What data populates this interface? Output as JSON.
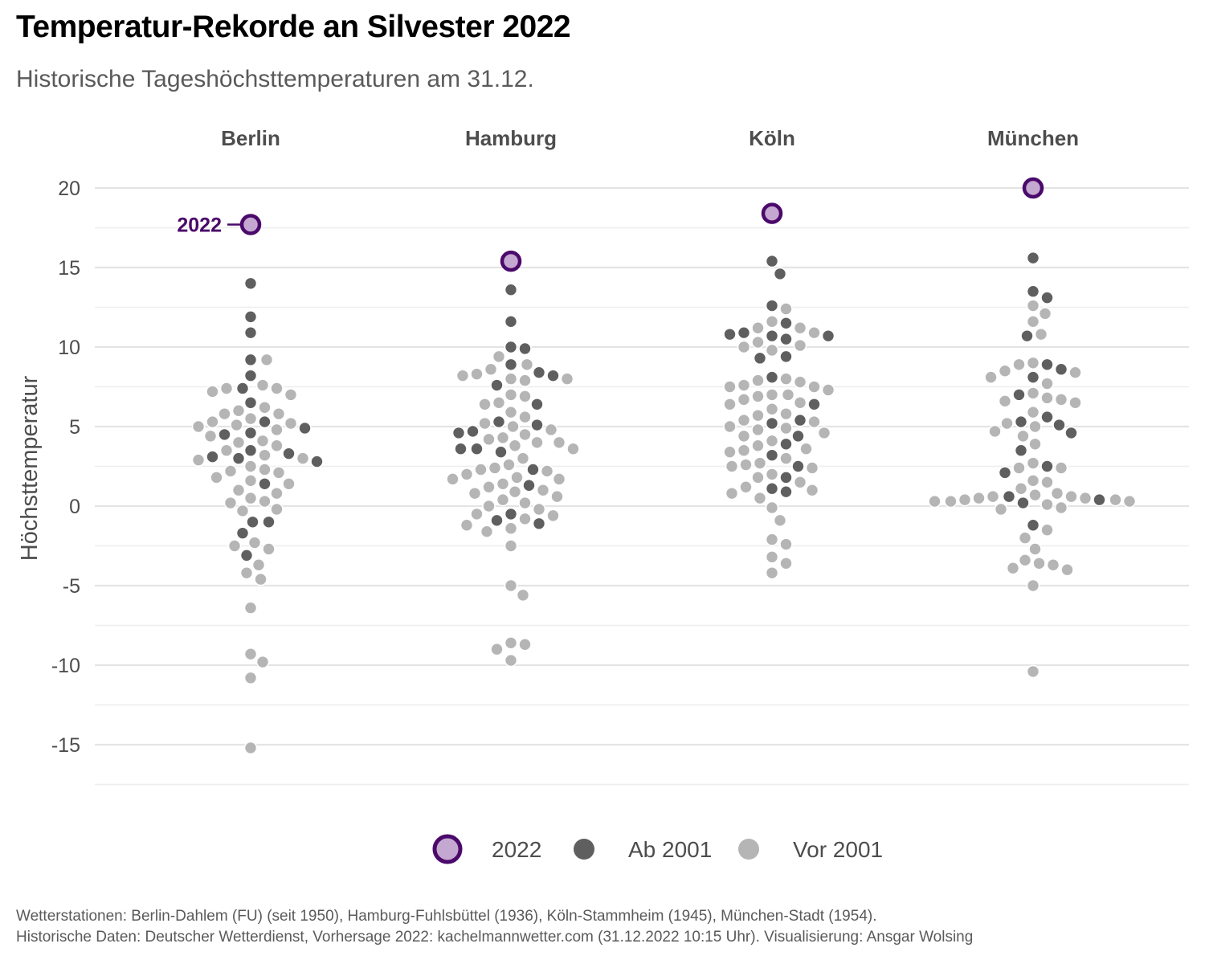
{
  "title": "Temperatur-Rekorde an Silvester 2022",
  "subtitle": "Historische Tageshöchsttemperaturen am 31.12.",
  "caption": {
    "line1": "Wetterstationen: Berlin-Dahlem (FU) (seit 1950), Hamburg-Fuhlsbüttel (1936), Köln-Stammheim (1945), München-Stadt (1954).",
    "line2": "Historische Daten: Deutscher Wetterdienst, Vorhersage 2022: kachelmannwetter.com (31.12.2022 10:15 Uhr). Visualisierung: Ansgar Wolsing"
  },
  "chart_data": {
    "type": "scatter",
    "title": "Temperatur-Rekorde an Silvester 2022",
    "subtitle": "Historische Tageshöchsttemperaturen am 31.12.",
    "ylabel": "Höchsttemperatur",
    "xlabel": "",
    "ylim": [
      -17.5,
      22
    ],
    "yticks": [
      -15,
      -10,
      -5,
      0,
      5,
      10,
      15,
      20
    ],
    "grid": true,
    "legend_position": "bottom",
    "annotation": {
      "text": "2022",
      "city": "Berlin"
    },
    "colors": {
      "2022_fill": "#c5a8d1",
      "2022_stroke": "#4b0a6b",
      "ab2001": "#5f5f5f",
      "vor2001": "#b5b5b5",
      "annotation": "#4b0a6b"
    },
    "legend": [
      {
        "key": "2022",
        "label": "2022"
      },
      {
        "key": "ab2001",
        "label": "Ab 2001"
      },
      {
        "key": "vor2001",
        "label": "Vor 2001"
      }
    ],
    "panels": [
      {
        "city": "Berlin",
        "y2022": 17.7,
        "ab2001": [
          14.0,
          11.9,
          10.9,
          9.2,
          8.2,
          7.4,
          6.5,
          5.3,
          4.9,
          4.6,
          4.5,
          3.5,
          3.3,
          3.1,
          3.0,
          2.8,
          1.4,
          -1.0,
          -1.0,
          -1.7,
          -3.1
        ],
        "vor2001": [
          9.2,
          7.6,
          7.4,
          7.4,
          7.2,
          7.0,
          6.2,
          6.0,
          5.8,
          5.8,
          5.5,
          5.3,
          5.2,
          5.1,
          5.0,
          4.8,
          4.4,
          4.1,
          4.0,
          3.8,
          3.5,
          3.2,
          3.0,
          2.9,
          2.5,
          2.3,
          2.2,
          2.1,
          1.8,
          1.6,
          1.4,
          1.0,
          0.8,
          0.5,
          0.3,
          0.2,
          -0.2,
          -0.3,
          -2.3,
          -2.5,
          -2.7,
          -3.7,
          -4.2,
          -4.6,
          -6.4,
          -9.3,
          -9.8,
          -10.8,
          -15.2
        ]
      },
      {
        "city": "Hamburg",
        "y2022": 15.4,
        "ab2001": [
          13.6,
          11.6,
          10.0,
          9.9,
          8.9,
          8.4,
          8.2,
          7.6,
          6.4,
          5.3,
          5.1,
          4.7,
          4.6,
          3.6,
          3.6,
          3.4,
          2.3,
          1.3,
          -0.5,
          -0.9,
          -1.1
        ],
        "vor2001": [
          9.4,
          8.9,
          8.6,
          8.3,
          8.2,
          8.0,
          8.0,
          7.9,
          7.0,
          6.9,
          6.5,
          6.4,
          5.9,
          5.6,
          5.2,
          5.0,
          4.8,
          4.5,
          4.3,
          4.2,
          4.0,
          4.0,
          3.8,
          3.6,
          3.0,
          2.6,
          2.4,
          2.3,
          2.2,
          2.0,
          1.8,
          1.7,
          1.7,
          1.4,
          1.2,
          1.0,
          0.9,
          0.8,
          0.6,
          0.4,
          0.2,
          0.0,
          -0.2,
          -0.5,
          -0.6,
          -0.8,
          -1.2,
          -1.4,
          -1.6,
          -2.5,
          -5.0,
          -5.6,
          -8.6,
          -8.7,
          -9.0,
          -9.7
        ]
      },
      {
        "city": "Köln",
        "y2022": 18.4,
        "ab2001": [
          15.4,
          14.6,
          12.6,
          11.5,
          10.9,
          10.8,
          10.7,
          10.7,
          10.5,
          9.4,
          9.3,
          8.1,
          6.4,
          5.4,
          5.2,
          4.4,
          3.9,
          3.2,
          2.5,
          1.8,
          1.1,
          0.9
        ],
        "vor2001": [
          12.4,
          11.6,
          11.2,
          11.2,
          10.9,
          10.3,
          10.1,
          10.0,
          9.8,
          8.0,
          7.9,
          7.8,
          7.6,
          7.5,
          7.5,
          7.3,
          7.0,
          7.0,
          6.9,
          6.7,
          6.5,
          6.4,
          6.1,
          5.8,
          5.7,
          5.4,
          5.3,
          5.0,
          4.9,
          4.8,
          4.6,
          4.4,
          4.1,
          3.8,
          3.6,
          3.5,
          3.4,
          3.0,
          2.7,
          2.6,
          2.5,
          2.4,
          2.0,
          1.8,
          1.5,
          1.2,
          1.0,
          0.8,
          0.5,
          -0.1,
          -0.9,
          -2.1,
          -2.4,
          -3.2,
          -3.6,
          -4.2
        ]
      },
      {
        "city": "München",
        "y2022": 20.0,
        "ab2001": [
          15.6,
          13.5,
          13.1,
          10.7,
          8.9,
          8.6,
          8.1,
          7.0,
          5.6,
          5.3,
          5.1,
          4.6,
          3.5,
          2.5,
          2.1,
          0.6,
          0.4,
          0.2,
          -1.2
        ],
        "vor2001": [
          12.6,
          12.1,
          11.6,
          10.8,
          9.0,
          8.9,
          8.5,
          8.4,
          8.1,
          7.7,
          7.1,
          6.8,
          6.7,
          6.6,
          6.5,
          5.9,
          5.2,
          5.0,
          4.7,
          4.4,
          3.9,
          2.7,
          2.4,
          2.4,
          1.6,
          1.5,
          1.1,
          0.8,
          0.7,
          0.6,
          0.6,
          0.5,
          0.5,
          0.4,
          0.4,
          0.3,
          0.3,
          0.3,
          0.1,
          -0.1,
          -0.2,
          -1.5,
          -2.0,
          -2.7,
          -3.4,
          -3.6,
          -3.7,
          -3.9,
          -4.0,
          -5.0,
          -10.4
        ]
      }
    ]
  }
}
